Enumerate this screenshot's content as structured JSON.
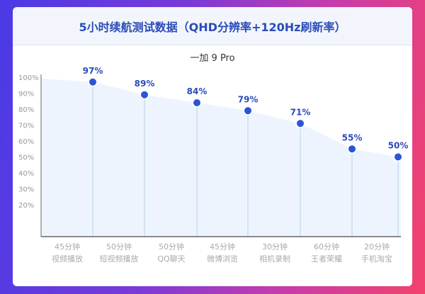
{
  "chart_data": {
    "type": "area",
    "title": "5小时续航测试数据（QHD分辨率+120Hz刷新率）",
    "subtitle": "一加 9 Pro",
    "ylim": [
      0,
      100
    ],
    "yticks": [
      "100%",
      "90%",
      "80%",
      "70%",
      "60%",
      "50%",
      "40%",
      "30%",
      "20%"
    ],
    "ytick_values": [
      100,
      90,
      80,
      70,
      60,
      50,
      40,
      30,
      20
    ],
    "categories": [
      [
        "45分钟",
        "视频播放"
      ],
      [
        "50分钟",
        "短视频播放"
      ],
      [
        "50分钟",
        "QQ聊天"
      ],
      [
        "45分钟",
        "微博浏览"
      ],
      [
        "30分钟",
        "相机录制"
      ],
      [
        "60分钟",
        "王者荣耀"
      ],
      [
        "20分钟",
        "手机淘宝"
      ]
    ],
    "start_value": 100,
    "values": [
      97,
      89,
      84,
      79,
      71,
      55,
      50
    ],
    "labels": [
      "97%",
      "89%",
      "84%",
      "79%",
      "71%",
      "55%",
      "50%"
    ],
    "colors": {
      "point": "#2b54d6",
      "label": "#2a4cb8",
      "area": "#eef4fd",
      "stem": "#c9ddf0"
    }
  }
}
